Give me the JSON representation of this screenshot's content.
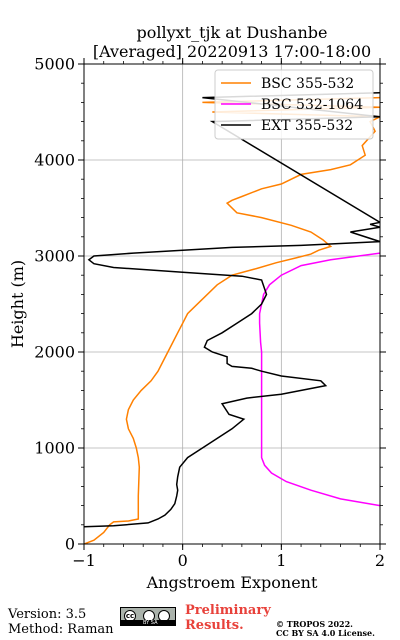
{
  "chart_data": {
    "type": "line",
    "title": "pollyxt_tjk at Dushanbe",
    "subtitle": "[Averaged] 20220913 17:00-18:00",
    "xlabel": "Angstroem Exponent",
    "ylabel": "Height (m)",
    "xlim": [
      -1,
      2
    ],
    "ylim": [
      0,
      5000
    ],
    "xticks": [
      -1,
      0,
      1,
      2
    ],
    "xtick_labels": [
      "−1",
      "0",
      "1",
      "2"
    ],
    "yticks": [
      0,
      1000,
      2000,
      3000,
      4000,
      5000
    ],
    "ytick_labels": [
      "0",
      "1000",
      "2000",
      "3000",
      "4000",
      "5000"
    ],
    "grid": true,
    "legend_position": "top-right",
    "series": [
      {
        "name": "BSC 355-532",
        "color": "#ff8000",
        "x": [
          -1.0,
          -0.9,
          -0.8,
          -0.74,
          -0.7,
          -0.55,
          -0.45,
          -0.45,
          -0.44,
          -0.45,
          -0.47,
          -0.5,
          -0.55,
          -0.57,
          -0.55,
          -0.5,
          -0.42,
          -0.32,
          -0.25,
          -0.2,
          -0.1,
          -0.05,
          0.0,
          0.05,
          0.2,
          0.35,
          0.5,
          0.75,
          0.95,
          1.15,
          1.3,
          1.38,
          1.5,
          1.42,
          1.3,
          1.1,
          0.8,
          0.55,
          0.45,
          0.5,
          0.6,
          0.8,
          1.0,
          1.2,
          1.5,
          1.7,
          1.85,
          1.82,
          1.95,
          1.9,
          2.0,
          0.3,
          2.0,
          0.2,
          2.0
        ],
        "y": [
          0,
          40,
          120,
          200,
          230,
          240,
          260,
          500,
          800,
          900,
          1000,
          1100,
          1200,
          1300,
          1400,
          1500,
          1600,
          1700,
          1800,
          1900,
          2100,
          2200,
          2300,
          2400,
          2550,
          2700,
          2800,
          2870,
          2930,
          2980,
          3020,
          3060,
          3100,
          3170,
          3250,
          3320,
          3400,
          3450,
          3550,
          3580,
          3620,
          3700,
          3750,
          3850,
          3900,
          3950,
          4050,
          4150,
          4300,
          4400,
          4450,
          4500,
          4550,
          4600,
          4650
        ]
      },
      {
        "name": "BSC 532-1064",
        "color": "#ff00ff",
        "x": [
          2.0,
          1.6,
          1.3,
          1.05,
          0.9,
          0.83,
          0.8,
          0.8,
          0.8,
          0.8,
          0.8,
          0.79,
          0.78,
          0.78,
          0.8,
          0.82,
          0.88,
          1.0,
          1.2,
          1.5,
          2.0
        ],
        "y": [
          400,
          470,
          560,
          650,
          740,
          820,
          900,
          1200,
          1500,
          1800,
          2000,
          2100,
          2300,
          2400,
          2500,
          2600,
          2700,
          2800,
          2900,
          2960,
          3030
        ]
      },
      {
        "name": "EXT 355-532",
        "color": "#000000",
        "x": [
          -1.0,
          -0.7,
          -0.35,
          -0.25,
          -0.18,
          -0.12,
          -0.08,
          -0.06,
          -0.05,
          -0.06,
          -0.05,
          -0.03,
          0.05,
          0.2,
          0.35,
          0.5,
          0.62,
          0.47,
          0.4,
          0.65,
          1.0,
          1.45,
          1.4,
          1.0,
          0.8,
          0.7,
          0.5,
          0.45,
          0.45,
          0.3,
          0.22,
          0.25,
          0.4,
          0.55,
          0.7,
          0.8,
          0.85,
          0.8,
          0.6,
          0.0,
          -0.7,
          -0.9,
          -0.95,
          -0.9,
          -0.5,
          0.0,
          0.5,
          1.2,
          2.0,
          1.7,
          2.0,
          1.9,
          2.0,
          0.3,
          2.0,
          0.2,
          2.0
        ],
        "y": [
          180,
          190,
          220,
          260,
          300,
          360,
          420,
          500,
          560,
          620,
          700,
          800,
          900,
          1000,
          1100,
          1200,
          1300,
          1350,
          1460,
          1520,
          1560,
          1650,
          1700,
          1750,
          1800,
          1830,
          1850,
          1880,
          1950,
          2000,
          2050,
          2120,
          2200,
          2300,
          2400,
          2500,
          2600,
          2750,
          2790,
          2830,
          2880,
          2920,
          2960,
          3000,
          3030,
          3060,
          3090,
          3110,
          3150,
          3250,
          3300,
          3330,
          3350,
          4400,
          4450,
          4650,
          4700
        ]
      }
    ]
  },
  "footer": {
    "version": "Version: 3.5",
    "method": "Method: Raman",
    "badge_cc": "cc",
    "badge_strip": "BY  SA",
    "preliminary_line1": "Preliminary",
    "preliminary_line2": "Results.",
    "copyright_line1": "© TROPOS 2022.",
    "copyright_line2": "CC BY SA 4.0 License."
  }
}
